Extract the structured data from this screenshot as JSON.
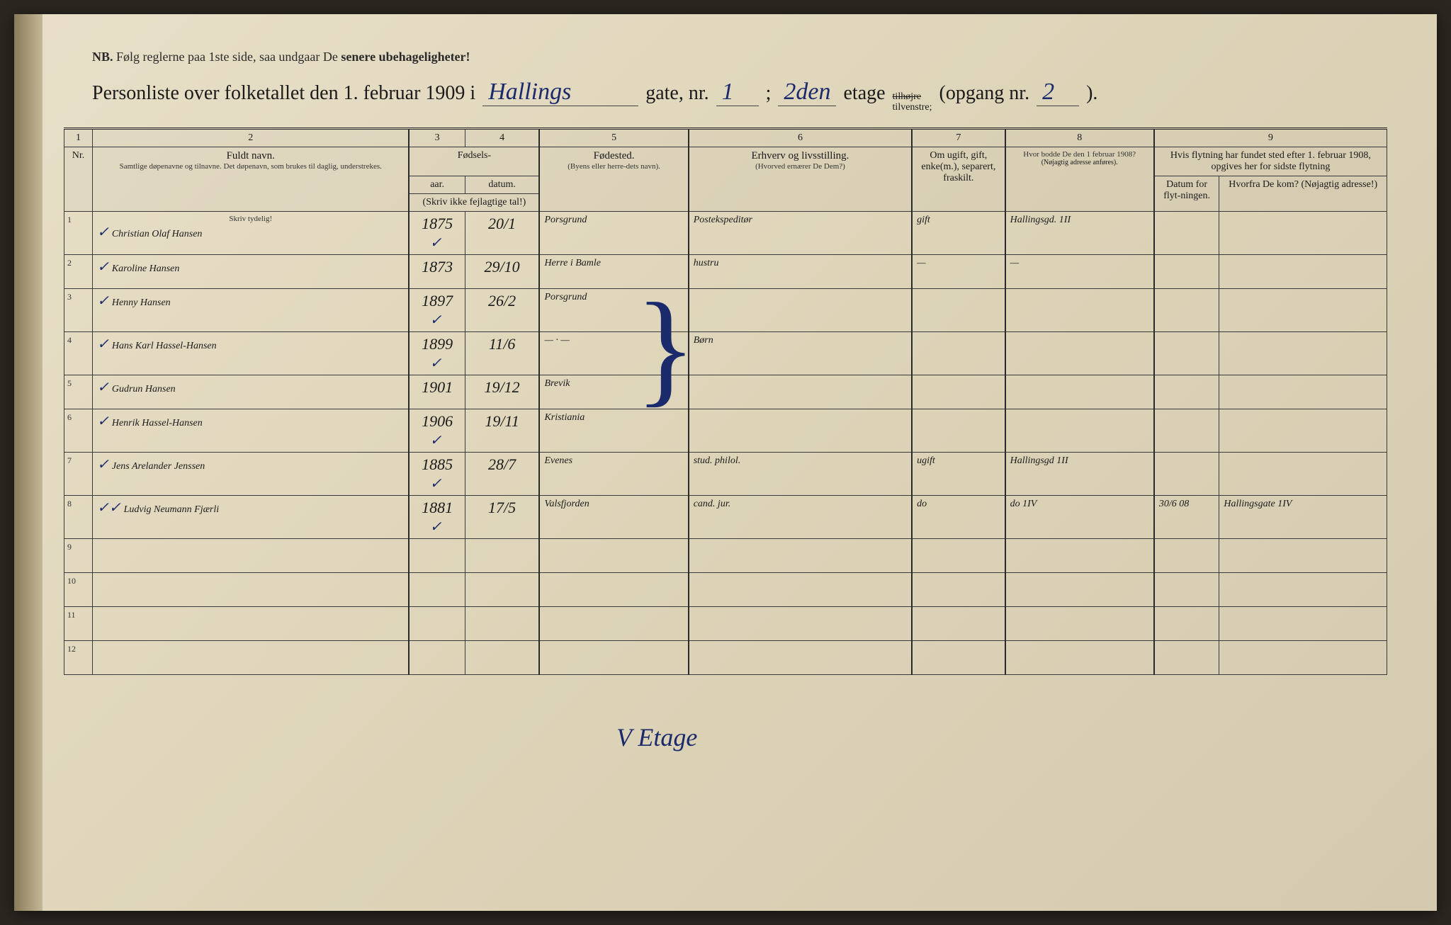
{
  "meta": {
    "nb_prefix": "NB.",
    "nb_text": "Følg reglerne paa 1ste side, saa undgaar De",
    "nb_emph": "senere ubehageligheter!",
    "title_prefix": "Personliste over folketallet den 1. februar 1909 i",
    "street_name": "Hallings",
    "gate_label": "gate, nr.",
    "gate_nr": "1",
    "etage_nr": "2den",
    "etage_label": "etage",
    "side_struck": "tilhøjre",
    "side_kept": "tilvenstre;",
    "opgang_label": "(opgang nr.",
    "opgang_nr": "2",
    "opgang_close": ")."
  },
  "columns": {
    "group_nums": [
      "1",
      "2",
      "3",
      "4",
      "5",
      "6",
      "7",
      "8",
      "9"
    ],
    "nr": "Nr.",
    "name_main": "Fuldt navn.",
    "name_sub": "Samtlige døpenavne og tilnavne. Det døpenavn, som brukes til daglig, understrekes.",
    "fodsels": "Fødsels-",
    "aar": "aar.",
    "datum": "datum.",
    "aar_note": "(Skriv ikke fejlagtige tal!)",
    "fodested": "Fødested.",
    "fodested_sub": "(Byens eller herre-dets navn).",
    "erhverv": "Erhverv og livsstilling.",
    "erhverv_sub": "(Hvorved ernærer De Dem?)",
    "civil": "Om ugift, gift, enke(m.), separert, fraskilt.",
    "bodde": "Hvor bodde De den 1 februar 1908?",
    "bodde_sub": "(Nøjagtig adresse anføres).",
    "flytning_top": "Hvis flytning har fundet sted efter 1. februar 1908, opgives her for sidste flytning",
    "flytning_datum": "Datum for flyt-ningen.",
    "flytning_hvorfra": "Hvorfra De kom? (Nøjagtig adresse!)",
    "skriv_tydelig": "Skriv tydelig!"
  },
  "rows": [
    {
      "nr": "1",
      "check": "✓",
      "name": "Christian Olaf Hansen",
      "year": "1875",
      "ycheck": "✓",
      "date": "20/1",
      "place": "Porsgrund",
      "occ": "Postekspeditør",
      "civil": "gift",
      "addr": "Hallingsgd. 1II",
      "fdate": "",
      "from": ""
    },
    {
      "nr": "2",
      "check": "✓",
      "name": "Karoline Hansen",
      "year": "1873",
      "ycheck": "",
      "date": "29/10",
      "place": "Herre i Bamle",
      "occ": "hustru",
      "civil": "—",
      "addr": "—",
      "fdate": "",
      "from": ""
    },
    {
      "nr": "3",
      "check": "✓",
      "name": "Henny Hansen",
      "year": "1897",
      "ycheck": "✓",
      "date": "26/2",
      "place": "Porsgrund",
      "occ": "",
      "civil": "",
      "addr": "",
      "fdate": "",
      "from": ""
    },
    {
      "nr": "4",
      "check": "✓",
      "name": "Hans Karl Hassel-Hansen",
      "year": "1899",
      "ycheck": "✓",
      "date": "11/6",
      "place": "— · —",
      "occ": "Børn",
      "civil": "",
      "addr": "",
      "fdate": "",
      "from": ""
    },
    {
      "nr": "5",
      "check": "✓",
      "name": "Gudrun Hansen",
      "year": "1901",
      "ycheck": "",
      "date": "19/12",
      "place": "Brevik",
      "occ": "",
      "civil": "",
      "addr": "",
      "fdate": "",
      "from": ""
    },
    {
      "nr": "6",
      "check": "✓",
      "name": "Henrik Hassel-Hansen",
      "year": "1906",
      "ycheck": "✓",
      "date": "19/11",
      "place": "Kristiania",
      "occ": "",
      "civil": "",
      "addr": "",
      "fdate": "",
      "from": ""
    },
    {
      "nr": "7",
      "check": "✓",
      "name": "Jens Arelander Jenssen",
      "year": "1885",
      "ycheck": "✓",
      "date": "28/7",
      "place": "Evenes",
      "occ": "stud. philol.",
      "civil": "ugift",
      "addr": "Hallingsgd 1II",
      "fdate": "",
      "from": ""
    },
    {
      "nr": "8",
      "check": "✓✓",
      "name": "Ludvig Neumann Fjærli",
      "year": "1881",
      "ycheck": "✓",
      "date": "17/5",
      "place": "Valsfjorden",
      "occ": "cand. jur.",
      "civil": "do",
      "addr": "do    1IV",
      "fdate": "30/6 08",
      "from": "Hallingsgate 1IV"
    },
    {
      "nr": "9",
      "check": "",
      "name": "",
      "year": "",
      "ycheck": "",
      "date": "",
      "place": "",
      "occ": "",
      "civil": "",
      "addr": "",
      "fdate": "",
      "from": ""
    },
    {
      "nr": "10",
      "check": "",
      "name": "",
      "year": "",
      "ycheck": "",
      "date": "",
      "place": "",
      "occ": "",
      "civil": "",
      "addr": "",
      "fdate": "",
      "from": ""
    },
    {
      "nr": "11",
      "check": "",
      "name": "",
      "year": "",
      "ycheck": "",
      "date": "",
      "place": "",
      "occ": "",
      "civil": "",
      "addr": "",
      "fdate": "",
      "from": ""
    },
    {
      "nr": "12",
      "check": "",
      "name": "",
      "year": "",
      "ycheck": "",
      "date": "",
      "place": "",
      "occ": "",
      "civil": "",
      "addr": "",
      "fdate": "",
      "from": ""
    }
  ],
  "annotation_etage": "V Etage",
  "colors": {
    "paper": "#e8dfc8",
    "ink_print": "#1a1a1a",
    "ink_hand": "#1a2a6b",
    "border": "#3a3a3a"
  }
}
